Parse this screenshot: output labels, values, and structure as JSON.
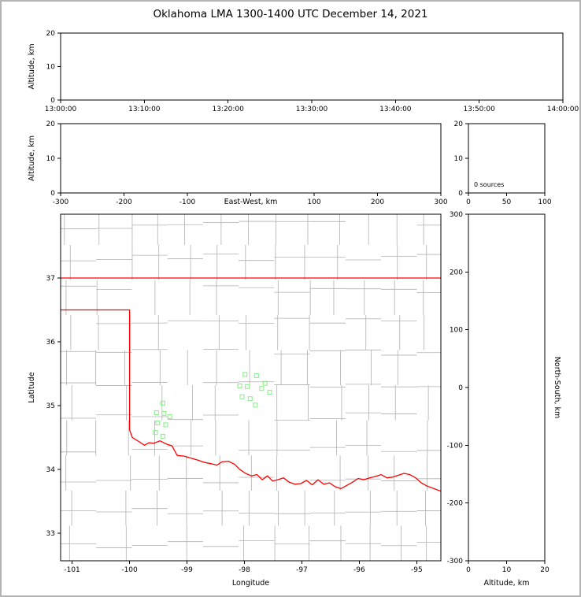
{
  "title": "Oklahoma LMA 1300-1400 UTC December 14, 2021",
  "colors": {
    "frame": "#b4b4b4",
    "plot_bg": "#ffffff",
    "axis": "#000000",
    "county_lines": "#b0b0b0",
    "state_border": "#ff0000",
    "station_marker": "#90ee90",
    "text": "#000000"
  },
  "chart_data": [
    {
      "id": "time_height",
      "type": "scatter",
      "xlabel": "",
      "ylabel": "Altitude, km",
      "x_ticks": [
        "13:00:00",
        "13:10:00",
        "13:20:00",
        "13:30:00",
        "13:40:00",
        "13:50:00",
        "14:00:00"
      ],
      "ylim": [
        0,
        20
      ],
      "y_ticks": [
        0,
        10,
        20
      ],
      "points": []
    },
    {
      "id": "ew_height",
      "type": "scatter",
      "xlabel": "East-West, km",
      "xlabel_inline": true,
      "ylabel": "Altitude, km",
      "xlim": [
        -300,
        300
      ],
      "x_ticks": [
        -300,
        -200,
        -100,
        0,
        100,
        200,
        300
      ],
      "x_tick_labels": [
        "-300",
        "-200",
        "-100",
        "",
        "100",
        "200",
        "300"
      ],
      "ylim": [
        0,
        20
      ],
      "y_ticks": [
        0,
        10,
        20
      ],
      "points": []
    },
    {
      "id": "alt_hist",
      "type": "histogram",
      "annotation": "0 sources",
      "xlim": [
        0,
        100
      ],
      "x_ticks": [
        0,
        50,
        100
      ],
      "ylim": [
        0,
        20
      ],
      "y_ticks": [
        0,
        10,
        20
      ],
      "values": []
    },
    {
      "id": "plan_view",
      "type": "map",
      "xlabel": "Longitude",
      "ylabel": "Latitude",
      "xlim": [
        -101.2,
        -94.58
      ],
      "x_ticks": [
        -101,
        -100,
        -99,
        -98,
        -97,
        -96,
        -95
      ],
      "ylim": [
        32.57,
        38.0
      ],
      "y_ticks": [
        33,
        34,
        35,
        36,
        37
      ],
      "stations": [
        [
          -99.42,
          35.04
        ],
        [
          -99.53,
          34.89
        ],
        [
          -99.4,
          34.88
        ],
        [
          -99.3,
          34.83
        ],
        [
          -99.51,
          34.73
        ],
        [
          -99.37,
          34.7
        ],
        [
          -99.55,
          34.58
        ],
        [
          -99.42,
          34.52
        ],
        [
          -97.99,
          35.49
        ],
        [
          -97.79,
          35.47
        ],
        [
          -98.08,
          35.31
        ],
        [
          -97.95,
          35.3
        ],
        [
          -97.7,
          35.27
        ],
        [
          -97.64,
          35.35
        ],
        [
          -97.56,
          35.21
        ],
        [
          -98.04,
          35.14
        ],
        [
          -97.9,
          35.11
        ],
        [
          -97.81,
          35.01
        ]
      ],
      "state_border": [
        [
          [
            -101.2,
            37.0
          ],
          [
            -94.58,
            37.0
          ]
        ],
        [
          [
            -101.2,
            36.5
          ],
          [
            -100.0,
            36.5
          ],
          [
            -100.0,
            34.62
          ],
          [
            -99.95,
            34.5
          ],
          [
            -99.84,
            34.44
          ],
          [
            -99.74,
            34.38
          ],
          [
            -99.66,
            34.42
          ],
          [
            -99.58,
            34.41
          ],
          [
            -99.47,
            34.45
          ],
          [
            -99.36,
            34.4
          ],
          [
            -99.26,
            34.37
          ],
          [
            -99.17,
            34.22
          ],
          [
            -99.05,
            34.21
          ],
          [
            -98.94,
            34.18
          ],
          [
            -98.82,
            34.15
          ],
          [
            -98.69,
            34.11
          ],
          [
            -98.58,
            34.09
          ],
          [
            -98.48,
            34.07
          ],
          [
            -98.39,
            34.12
          ],
          [
            -98.28,
            34.13
          ],
          [
            -98.17,
            34.08
          ],
          [
            -98.08,
            34.0
          ],
          [
            -97.98,
            33.94
          ],
          [
            -97.88,
            33.9
          ],
          [
            -97.78,
            33.92
          ],
          [
            -97.69,
            33.84
          ],
          [
            -97.6,
            33.9
          ],
          [
            -97.51,
            33.82
          ],
          [
            -97.42,
            33.84
          ],
          [
            -97.32,
            33.87
          ],
          [
            -97.22,
            33.8
          ],
          [
            -97.12,
            33.77
          ],
          [
            -97.02,
            33.78
          ],
          [
            -96.92,
            33.83
          ],
          [
            -96.82,
            33.76
          ],
          [
            -96.72,
            33.84
          ],
          [
            -96.62,
            33.77
          ],
          [
            -96.52,
            33.79
          ],
          [
            -96.42,
            33.73
          ],
          [
            -96.32,
            33.7
          ],
          [
            -96.22,
            33.75
          ],
          [
            -96.12,
            33.8
          ],
          [
            -96.02,
            33.86
          ],
          [
            -95.92,
            33.84
          ],
          [
            -95.82,
            33.87
          ],
          [
            -95.72,
            33.89
          ],
          [
            -95.62,
            33.92
          ],
          [
            -95.52,
            33.87
          ],
          [
            -95.42,
            33.88
          ],
          [
            -95.32,
            33.91
          ],
          [
            -95.22,
            33.94
          ],
          [
            -95.12,
            33.92
          ],
          [
            -95.02,
            33.87
          ],
          [
            -94.92,
            33.79
          ],
          [
            -94.82,
            33.74
          ],
          [
            -94.7,
            33.7
          ],
          [
            -94.58,
            33.66
          ]
        ]
      ]
    },
    {
      "id": "ns_height",
      "type": "scatter",
      "xlabel": "Altitude, km",
      "ylabel_right": "North-South, km",
      "xlim": [
        0,
        20
      ],
      "x_ticks": [
        0,
        10,
        20
      ],
      "ylim": [
        -300,
        300
      ],
      "y_ticks": [
        300,
        200,
        100,
        0,
        -100,
        -200,
        -300
      ],
      "points": []
    }
  ]
}
